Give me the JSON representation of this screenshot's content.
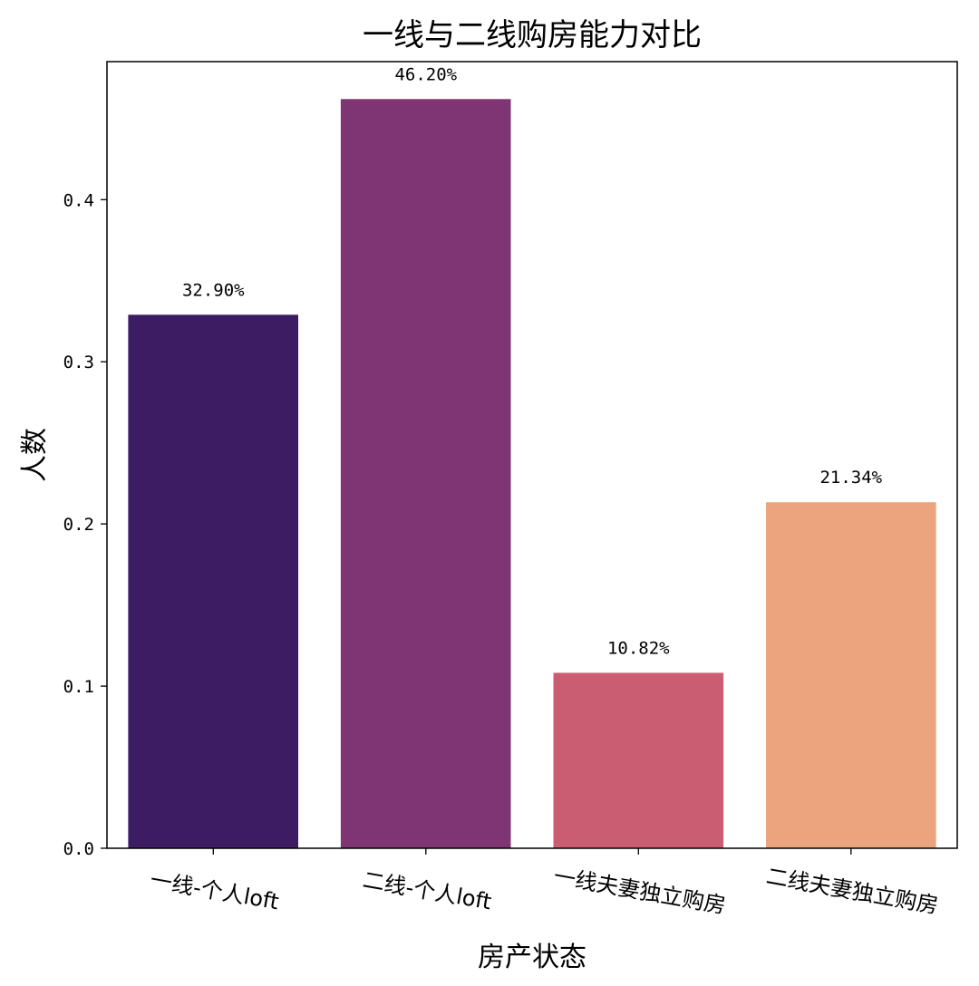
{
  "chart_data": {
    "type": "bar",
    "title": "一线与二线购房能力对比",
    "xlabel": "房产状态",
    "ylabel": "人数",
    "categories": [
      "一线-个人loft",
      "二线-个人loft",
      "一线夫妻独立购房",
      "二线夫妻独立购房"
    ],
    "values": [
      0.329,
      0.462,
      0.1082,
      0.2134
    ],
    "value_labels": [
      "32.90%",
      "46.20%",
      "10.82%",
      "21.34%"
    ],
    "colors": [
      "#3d1c63",
      "#7f3573",
      "#cb5d72",
      "#eca47e"
    ],
    "yticks": [
      "0.0",
      "0.1",
      "0.2",
      "0.3",
      "0.4"
    ],
    "ylim": [
      0,
      0.4851
    ],
    "grid": false
  }
}
